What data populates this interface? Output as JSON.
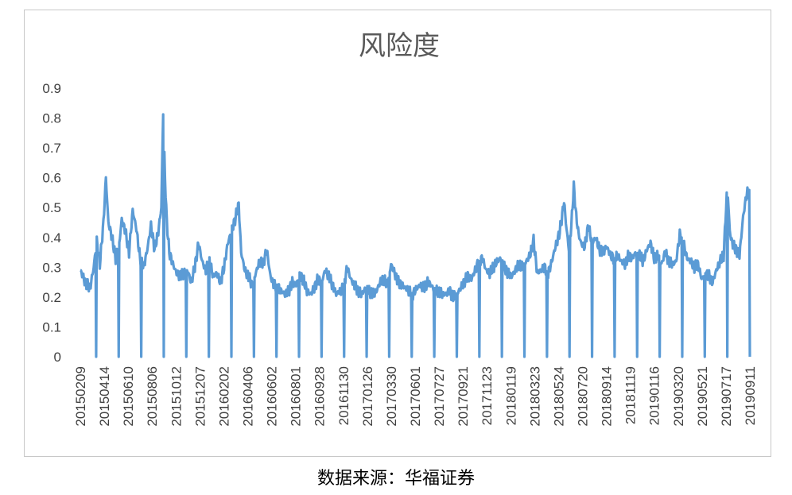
{
  "chart_data": {
    "type": "line",
    "title": "风险度",
    "xlabel": "",
    "ylabel": "",
    "ylim": [
      0,
      0.9
    ],
    "yticks": [
      "0",
      "0.1",
      "0.2",
      "0.3",
      "0.4",
      "0.5",
      "0.6",
      "0.7",
      "0.8",
      "0.9"
    ],
    "xtick_labels": [
      "20150209",
      "20150414",
      "20150610",
      "20150806",
      "20151012",
      "20151207",
      "20160202",
      "20160406",
      "20160602",
      "20160801",
      "20160928",
      "20161130",
      "20170126",
      "20170330",
      "20170601",
      "20170727",
      "20170921",
      "20171123",
      "20180119",
      "20180323",
      "20180524",
      "20180720",
      "20180914",
      "20181119",
      "20190116",
      "20190320",
      "20190521",
      "20190717",
      "20190911"
    ],
    "legend": "none",
    "grid": "none",
    "line_color": "#5b9bd5",
    "n_points": 1100,
    "series": [
      {
        "keypoints": [
          [
            0,
            0.29
          ],
          [
            8,
            0.25
          ],
          [
            16,
            0.23
          ],
          [
            22,
            0.3
          ],
          [
            27,
            0.39
          ],
          [
            32,
            0.31
          ],
          [
            38,
            0.45
          ],
          [
            42,
            0.6
          ],
          [
            46,
            0.45
          ],
          [
            52,
            0.4
          ],
          [
            58,
            0.33
          ],
          [
            64,
            0.38
          ],
          [
            68,
            0.46
          ],
          [
            74,
            0.42
          ],
          [
            80,
            0.35
          ],
          [
            86,
            0.49
          ],
          [
            92,
            0.43
          ],
          [
            98,
            0.33
          ],
          [
            104,
            0.3
          ],
          [
            110,
            0.36
          ],
          [
            116,
            0.44
          ],
          [
            122,
            0.36
          ],
          [
            128,
            0.42
          ],
          [
            133,
            0.5
          ],
          [
            136,
            0.82
          ],
          [
            139,
            0.6
          ],
          [
            142,
            0.45
          ],
          [
            146,
            0.35
          ],
          [
            152,
            0.31
          ],
          [
            158,
            0.28
          ],
          [
            164,
            0.27
          ],
          [
            170,
            0.28
          ],
          [
            176,
            0.29
          ],
          [
            182,
            0.25
          ],
          [
            188,
            0.3
          ],
          [
            194,
            0.38
          ],
          [
            200,
            0.32
          ],
          [
            206,
            0.29
          ],
          [
            212,
            0.32
          ],
          [
            218,
            0.27
          ],
          [
            224,
            0.28
          ],
          [
            230,
            0.25
          ],
          [
            236,
            0.3
          ],
          [
            242,
            0.38
          ],
          [
            248,
            0.42
          ],
          [
            254,
            0.46
          ],
          [
            260,
            0.51
          ],
          [
            264,
            0.35
          ],
          [
            270,
            0.29
          ],
          [
            276,
            0.27
          ],
          [
            282,
            0.24
          ],
          [
            288,
            0.28
          ],
          [
            294,
            0.32
          ],
          [
            300,
            0.31
          ],
          [
            306,
            0.36
          ],
          [
            312,
            0.27
          ],
          [
            318,
            0.24
          ],
          [
            324,
            0.23
          ],
          [
            330,
            0.22
          ],
          [
            336,
            0.21
          ],
          [
            342,
            0.22
          ],
          [
            348,
            0.25
          ],
          [
            354,
            0.24
          ],
          [
            360,
            0.27
          ],
          [
            366,
            0.26
          ],
          [
            372,
            0.22
          ],
          [
            378,
            0.21
          ],
          [
            384,
            0.23
          ],
          [
            390,
            0.26
          ],
          [
            396,
            0.25
          ],
          [
            402,
            0.29
          ],
          [
            408,
            0.27
          ],
          [
            414,
            0.24
          ],
          [
            420,
            0.21
          ],
          [
            426,
            0.22
          ],
          [
            432,
            0.23
          ],
          [
            438,
            0.3
          ],
          [
            444,
            0.26
          ],
          [
            450,
            0.24
          ],
          [
            456,
            0.22
          ],
          [
            462,
            0.21
          ],
          [
            468,
            0.23
          ],
          [
            474,
            0.22
          ],
          [
            480,
            0.21
          ],
          [
            486,
            0.22
          ],
          [
            492,
            0.25
          ],
          [
            498,
            0.26
          ],
          [
            504,
            0.24
          ],
          [
            510,
            0.31
          ],
          [
            516,
            0.28
          ],
          [
            522,
            0.25
          ],
          [
            528,
            0.24
          ],
          [
            534,
            0.23
          ],
          [
            540,
            0.22
          ],
          [
            546,
            0.21
          ],
          [
            552,
            0.23
          ],
          [
            558,
            0.24
          ],
          [
            564,
            0.23
          ],
          [
            570,
            0.25
          ],
          [
            576,
            0.24
          ],
          [
            582,
            0.22
          ],
          [
            588,
            0.22
          ],
          [
            594,
            0.21
          ],
          [
            600,
            0.21
          ],
          [
            606,
            0.22
          ],
          [
            612,
            0.2
          ],
          [
            618,
            0.21
          ],
          [
            624,
            0.23
          ],
          [
            630,
            0.25
          ],
          [
            636,
            0.27
          ],
          [
            642,
            0.26
          ],
          [
            648,
            0.29
          ],
          [
            654,
            0.32
          ],
          [
            660,
            0.33
          ],
          [
            666,
            0.29
          ],
          [
            672,
            0.28
          ],
          [
            678,
            0.3
          ],
          [
            684,
            0.32
          ],
          [
            690,
            0.33
          ],
          [
            696,
            0.3
          ],
          [
            702,
            0.28
          ],
          [
            708,
            0.27
          ],
          [
            714,
            0.29
          ],
          [
            720,
            0.31
          ],
          [
            726,
            0.3
          ],
          [
            732,
            0.32
          ],
          [
            738,
            0.34
          ],
          [
            744,
            0.39
          ],
          [
            750,
            0.28
          ],
          [
            756,
            0.29
          ],
          [
            762,
            0.3
          ],
          [
            768,
            0.28
          ],
          [
            774,
            0.32
          ],
          [
            780,
            0.37
          ],
          [
            786,
            0.41
          ],
          [
            790,
            0.46
          ],
          [
            794,
            0.52
          ],
          [
            798,
            0.43
          ],
          [
            802,
            0.36
          ],
          [
            806,
            0.44
          ],
          [
            810,
            0.57
          ],
          [
            814,
            0.47
          ],
          [
            818,
            0.41
          ],
          [
            822,
            0.38
          ],
          [
            828,
            0.37
          ],
          [
            834,
            0.44
          ],
          [
            840,
            0.38
          ],
          [
            846,
            0.4
          ],
          [
            852,
            0.36
          ],
          [
            858,
            0.35
          ],
          [
            864,
            0.37
          ],
          [
            870,
            0.34
          ],
          [
            876,
            0.33
          ],
          [
            882,
            0.34
          ],
          [
            888,
            0.32
          ],
          [
            894,
            0.31
          ],
          [
            900,
            0.34
          ],
          [
            906,
            0.33
          ],
          [
            912,
            0.35
          ],
          [
            918,
            0.34
          ],
          [
            924,
            0.32
          ],
          [
            930,
            0.36
          ],
          [
            936,
            0.38
          ],
          [
            942,
            0.33
          ],
          [
            948,
            0.34
          ],
          [
            954,
            0.31
          ],
          [
            960,
            0.35
          ],
          [
            966,
            0.32
          ],
          [
            972,
            0.31
          ],
          [
            978,
            0.32
          ],
          [
            984,
            0.41
          ],
          [
            990,
            0.38
          ],
          [
            996,
            0.33
          ],
          [
            1002,
            0.32
          ],
          [
            1008,
            0.3
          ],
          [
            1014,
            0.31
          ],
          [
            1020,
            0.26
          ],
          [
            1026,
            0.28
          ],
          [
            1032,
            0.27
          ],
          [
            1038,
            0.25
          ],
          [
            1044,
            0.29
          ],
          [
            1050,
            0.32
          ],
          [
            1056,
            0.34
          ],
          [
            1062,
            0.58
          ],
          [
            1066,
            0.42
          ],
          [
            1070,
            0.38
          ],
          [
            1076,
            0.36
          ],
          [
            1082,
            0.34
          ],
          [
            1088,
            0.47
          ],
          [
            1094,
            0.55
          ]
        ]
      }
    ]
  },
  "caption": "数据来源：华福证券"
}
